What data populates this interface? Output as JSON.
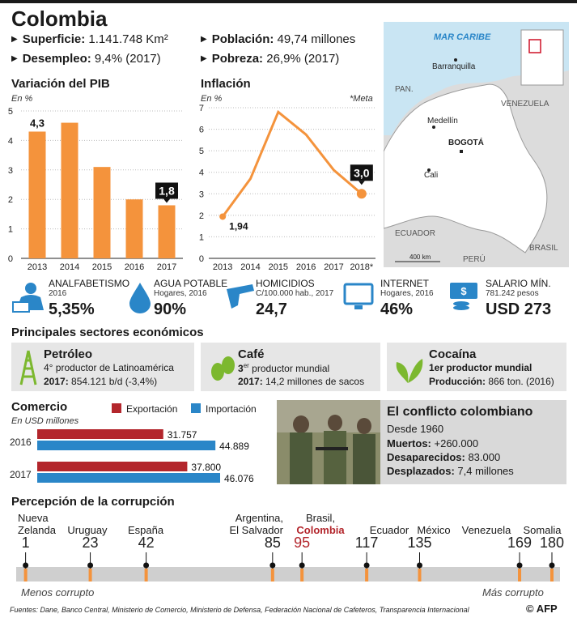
{
  "title": "Colombia",
  "facts": {
    "superficie_label": "Superficie:",
    "superficie_value": " 1.141.748 Km²",
    "desempleo_label": "Desempleo:",
    "desempleo_value": " 9,4% (2017)",
    "poblacion_label": "Población:",
    "poblacion_value": " 49,74 millones",
    "pobreza_label": "Pobreza:",
    "pobreza_value": " 26,9% (2017)"
  },
  "colors": {
    "orange": "#f4933c",
    "red": "#b3262c",
    "blue": "#2a86c8",
    "grey": "#cfcfcf"
  },
  "map": {
    "sea_label": "MAR CARIBE",
    "countries": [
      "PAN.",
      "VENEZUELA",
      "ECUADOR",
      "PERÚ",
      "BRASIL"
    ],
    "cities": [
      "Barranquilla",
      "Medellín",
      "BOGOTÁ",
      "Cali"
    ],
    "scale": "400 km"
  },
  "chart_data": [
    {
      "type": "bar",
      "title": "Variación del PIB",
      "ylabel": "En %",
      "categories": [
        "2013",
        "2014",
        "2015",
        "2016",
        "2017"
      ],
      "values": [
        4.3,
        4.6,
        3.1,
        2.0,
        1.8
      ],
      "ylim": [
        0,
        5
      ],
      "yticks": [
        "0",
        "1",
        "2",
        "3",
        "4",
        "5"
      ],
      "labels": [
        "4,3",
        "1,8"
      ]
    },
    {
      "type": "line",
      "title": "Inflación",
      "ylabel": "En %",
      "note": "*Meta",
      "categories": [
        "2013",
        "2014",
        "2015",
        "2016",
        "2017",
        "2018*"
      ],
      "values": [
        1.94,
        3.7,
        6.8,
        5.75,
        4.1,
        3.0
      ],
      "ylim": [
        0,
        7
      ],
      "yticks": [
        "0",
        "1",
        "2",
        "3",
        "4",
        "5",
        "6",
        "7"
      ],
      "labels": [
        "1,94",
        "3,0"
      ]
    },
    {
      "type": "bar",
      "title": "Comercio",
      "ylabel": "En USD millones",
      "categories": [
        "2016",
        "2017"
      ],
      "series": [
        {
          "name": "Exportación",
          "values": [
            31757,
            37800
          ],
          "labels": [
            "31.757",
            "37.800"
          ]
        },
        {
          "name": "Importación",
          "values": [
            44889,
            46076
          ],
          "labels": [
            "44.889",
            "46.076"
          ]
        }
      ]
    },
    {
      "type": "scatter",
      "title": "Percepción de la corrupción",
      "xlim": [
        0,
        180
      ],
      "points": [
        {
          "name": "Nueva Zelanda",
          "value": 1,
          "label": "1"
        },
        {
          "name": "Uruguay",
          "value": 23,
          "label": "23"
        },
        {
          "name": "España",
          "value": 42,
          "label": "42"
        },
        {
          "name": "Argentina, El Salvador",
          "value": 85,
          "label": "85"
        },
        {
          "name": "Brasil, Colombia",
          "value": 95,
          "label": "95"
        },
        {
          "name": "Ecuador",
          "value": 117,
          "label": "117"
        },
        {
          "name": "México",
          "value": 135,
          "label": "135"
        },
        {
          "name": "Venezuela",
          "value": 169,
          "label": "169"
        },
        {
          "name": "Somalia",
          "value": 180,
          "label": "180"
        }
      ]
    }
  ],
  "kpis": [
    {
      "label": "ANALFABETISMO",
      "sub": "2016",
      "value": "5,35%"
    },
    {
      "label": "AGUA POTABLE",
      "sub": "Hogares, 2016",
      "value": "90%"
    },
    {
      "label": "HOMICIDIOS",
      "sub": "C/100.000 hab., 2017",
      "value": "24,7"
    },
    {
      "label": "INTERNET",
      "sub": "Hogares, 2016",
      "value": "46%"
    },
    {
      "label": "SALARIO MÍN.",
      "sub": "781.242 pesos",
      "value": "USD 273"
    }
  ],
  "sectors_title": "Principales sectores económicos",
  "sectors": [
    {
      "title": "Petróleo",
      "line1": "4° productor de Latinoamérica",
      "line2_b": "2017:",
      "line2": " 854.121 b/d (-3,4%)"
    },
    {
      "title": "Café",
      "line1_b": "3",
      "line1_sup": "er",
      "line1": " productor mundial",
      "line2_b": "2017:",
      "line2": " 14,2 millones de sacos"
    },
    {
      "title": "Cocaína",
      "line1_b": "1er productor mundial",
      "line2_b": "Producción:",
      "line2": " 866 ton. (2016)"
    }
  ],
  "conflict": {
    "title": "El conflicto colombiano",
    "since": "Desde 1960",
    "dead_label": "Muertos:",
    "dead_value": " +260.000",
    "missing_label": "Desaparecidos:",
    "missing_value": " 83.000",
    "displaced_label": "Desplazados:",
    "displaced_value": " 7,4 millones"
  },
  "cpi": {
    "names": [
      "Nueva",
      "Zelanda",
      "Uruguay",
      "España",
      "Argentina,",
      "El Salvador",
      "Brasil,",
      "Colombia",
      "Ecuador",
      "México",
      "Venezuela",
      "Somalia"
    ],
    "left_label": "Menos corrupto",
    "right_label": "Más corrupto"
  },
  "footer": "Fuentes: Dane, Banco Central, Ministerio de Comercio, Ministerio de Defensa, Federación Nacional de Cafeteros, Transparencia Internacional",
  "credit": "© AFP"
}
